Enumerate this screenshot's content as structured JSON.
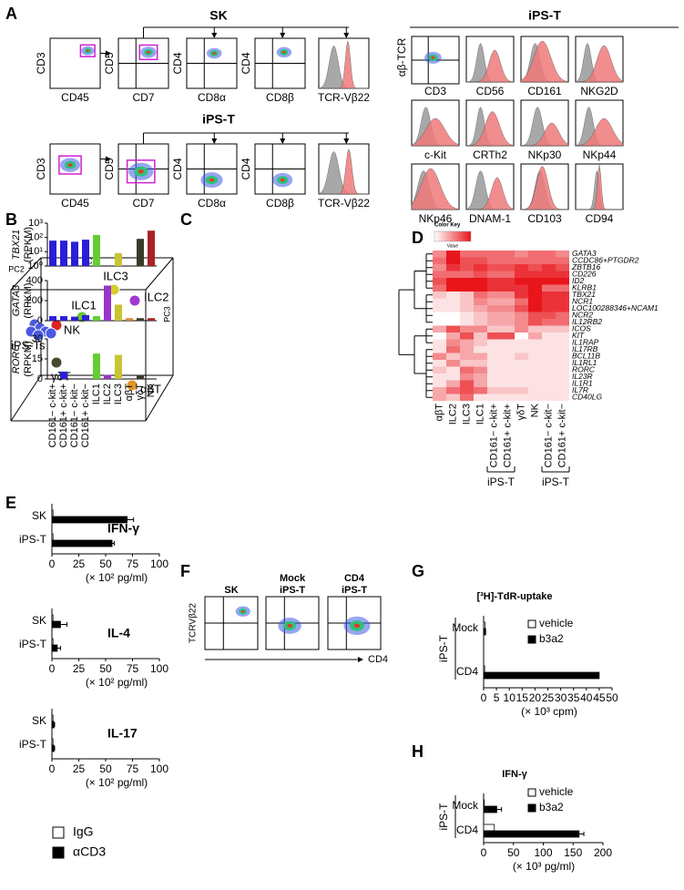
{
  "panel_labels": [
    "A",
    "B",
    "C",
    "D",
    "E",
    "F",
    "G",
    "H"
  ],
  "panel_a": {
    "sk_label": "SK",
    "ips_label": "iPS-T",
    "flow_plots": [
      {
        "y": "CD3",
        "x": "CD45"
      },
      {
        "y": "CD5",
        "x": "CD7"
      },
      {
        "y": "CD4",
        "x": "CD8α"
      },
      {
        "y": "CD4",
        "x": "CD8β"
      },
      {
        "x": "TCR-Vβ22"
      }
    ],
    "right_title": "iPS-T",
    "right_y": "αβ-TCR",
    "right_plots": [
      "CD3",
      "CD56",
      "CD161",
      "NKG2D",
      "c-Kit",
      "CRTh2",
      "NKp30",
      "NKp44",
      "NKp46",
      "DNAM-1",
      "CD103",
      "CD94"
    ]
  },
  "panel_b": {
    "axes": [
      "PC1",
      "PC2",
      "PC3"
    ],
    "points": [
      {
        "label": "ILC3",
        "color": "#d8cc2a"
      },
      {
        "label": "ILC2",
        "color": "#a03ad0"
      },
      {
        "label": "ILC1",
        "color": "#6ac43a"
      },
      {
        "label": "NK",
        "color": "#dd2222"
      },
      {
        "label": "iPS-Ts",
        "color": "#4a5ae0"
      },
      {
        "label": "γδT",
        "color": "#4a4a30"
      },
      {
        "label": "αβT",
        "color": "#e0962a"
      }
    ]
  },
  "panel_f": {
    "plots": [
      [
        "SK"
      ],
      [
        "Mock",
        "iPS-T"
      ],
      [
        "CD4",
        "iPS-T"
      ]
    ],
    "y_label": "TCRVβ22",
    "x_label": "CD4"
  },
  "chart_data": [
    {
      "type": "bar",
      "unit": "(RPKM)",
      "categories": [
        "CD161− c-kit+",
        "CD161+ c-kit+",
        "CD161− c-kit−",
        "CD161+ c-kit−",
        "ILC1",
        "ILC2",
        "ILC3",
        "αβT",
        "γδT",
        "NK"
      ],
      "colors": [
        "#2a1fd6",
        "#2a1fd6",
        "#2a1fd6",
        "#2a1fd6",
        "#66cc33",
        "#9933cc",
        "#c8c433",
        "#d08a33",
        "#3a3a28",
        "#aa2222"
      ],
      "panels": [
        {
          "ylabel": "TBX21",
          "log_scale": true,
          "ylim": [
            1,
            1000
          ],
          "yticks": [
            {
              "value": 1,
              "label": "10⁰"
            },
            {
              "value": 10,
              "label": "10¹"
            },
            {
              "value": 100,
              "label": "10²"
            },
            {
              "value": 1000,
              "label": "10³"
            }
          ],
          "values": [
            60,
            60,
            50,
            70,
            150,
            1,
            8,
            1,
            80,
            300
          ]
        },
        {
          "ylabel": "GATA3",
          "log_scale": false,
          "ylim": [
            0,
            400
          ],
          "yticks": [
            0,
            200,
            400
          ],
          "values": [
            45,
            45,
            40,
            55,
            45,
            350,
            160,
            25,
            25,
            25
          ]
        },
        {
          "ylabel": "RORC",
          "log_scale": false,
          "ylim": [
            0,
            30
          ],
          "yticks": [
            0,
            15,
            30
          ],
          "values": [
            0,
            5.5,
            0,
            0,
            19,
            3,
            18,
            0,
            3,
            0
          ]
        }
      ]
    },
    {
      "type": "heatmap",
      "color_key_title": "Color Key",
      "color_key_label": "Value",
      "columns": [
        "αβT",
        "ILC2",
        "ILC3",
        "ILC1",
        "CD161− c-kit+",
        "CD161+ c-kit+",
        "γδT",
        "NK",
        "CD161− c-kit−",
        "CD161+ c-kit−"
      ],
      "column_groups": [
        "iPS-T",
        "iPS-T"
      ],
      "rows": [
        "GATA3",
        "CCDC86+PTGDR2",
        "ZBTB16",
        "CD226",
        "ID2",
        "KLRB1",
        "TBX21",
        "NCR1",
        "LOC100288346+NCAM1",
        "NCR2",
        "IL12RB2",
        "ICOS",
        "KIT",
        "IL1RAP",
        "IL17RB",
        "BCL11B",
        "IL1RL1",
        "RORC",
        "IL23R",
        "IL1R1",
        "IL7R",
        "CD40LG"
      ],
      "values": [
        [
          4,
          8,
          5,
          5,
          5,
          5,
          4,
          5,
          5,
          4
        ],
        [
          5,
          8,
          6,
          6,
          5,
          5,
          5,
          5,
          5,
          5
        ],
        [
          4,
          7,
          6,
          7,
          6,
          6,
          7,
          6,
          7,
          6
        ],
        [
          5,
          5,
          5,
          6,
          5,
          5,
          7,
          7,
          7,
          7
        ],
        [
          6,
          8,
          8,
          8,
          7,
          7,
          8,
          8,
          8,
          8
        ],
        [
          5,
          8,
          8,
          8,
          7,
          7,
          7,
          8,
          5,
          5
        ],
        [
          2,
          1,
          2,
          5,
          4,
          4,
          7,
          8,
          7,
          7
        ],
        [
          1,
          1,
          2,
          4,
          3,
          3,
          5,
          8,
          7,
          7
        ],
        [
          1,
          1,
          2,
          3,
          4,
          4,
          6,
          8,
          7,
          7
        ],
        [
          0,
          0,
          1,
          2,
          3,
          3,
          4,
          6,
          6,
          5
        ],
        [
          0,
          0,
          1,
          2,
          3,
          3,
          4,
          6,
          5,
          5
        ],
        [
          3,
          6,
          4,
          4,
          2,
          2,
          4,
          2,
          2,
          2
        ],
        [
          0,
          3,
          6,
          2,
          6,
          6,
          0,
          3,
          1,
          1
        ],
        [
          1,
          4,
          3,
          2,
          1,
          1,
          1,
          1,
          1,
          1
        ],
        [
          1,
          5,
          3,
          1,
          1,
          1,
          1,
          1,
          1,
          1
        ],
        [
          4,
          2,
          3,
          3,
          1,
          1,
          2,
          1,
          1,
          1
        ],
        [
          1,
          4,
          2,
          2,
          1,
          1,
          1,
          1,
          1,
          1
        ],
        [
          2,
          1,
          5,
          4,
          1,
          1,
          1,
          1,
          1,
          1
        ],
        [
          1,
          1,
          4,
          3,
          1,
          1,
          1,
          1,
          1,
          1
        ],
        [
          1,
          3,
          6,
          3,
          1,
          1,
          1,
          1,
          1,
          1
        ],
        [
          3,
          5,
          6,
          5,
          2,
          2,
          2,
          1,
          1,
          1
        ],
        [
          3,
          2,
          5,
          1,
          1,
          1,
          1,
          1,
          1,
          1
        ]
      ]
    },
    {
      "type": "hbar",
      "panel_titles": [
        "IFN-γ",
        "IL-4",
        "IL-17"
      ],
      "categories": [
        "SK",
        "iPS-T"
      ],
      "xlim": [
        0,
        100
      ],
      "xticks": [
        0,
        25,
        50,
        75,
        100
      ],
      "xlabel": "(× 10² pg/ml)",
      "series": [
        {
          "name": "IgG",
          "color": "#ffffff",
          "values": [
            [
              1,
              1
            ],
            [
              1,
              1
            ],
            [
              1,
              1
            ]
          ]
        },
        {
          "name": "αCD3",
          "color": "#000000",
          "values": [
            [
              70,
              56
            ],
            [
              8,
              5
            ],
            [
              2,
              2
            ]
          ],
          "errors": [
            [
              6,
              2
            ],
            [
              6,
              3
            ],
            [
              0.5,
              0.5
            ]
          ]
        }
      ]
    },
    {
      "type": "hbar",
      "title": "[³H]-TdR-uptake",
      "group_label": "iPS-T",
      "categories": [
        "Mock",
        "CD4"
      ],
      "xlim": [
        0,
        50
      ],
      "xticks": [
        0,
        5,
        10,
        15,
        20,
        25,
        30,
        35,
        40,
        45,
        50
      ],
      "xlabel": "(× 10³ cpm)",
      "series": [
        {
          "name": "vehicle",
          "color": "#ffffff",
          "values": [
            0.5,
            0.4
          ]
        },
        {
          "name": "b3a2",
          "color": "#000000",
          "values": [
            0.8,
            45
          ]
        }
      ]
    },
    {
      "type": "hbar",
      "title": "IFN-γ",
      "group_label": "iPS-T",
      "categories": [
        "Mock",
        "CD4"
      ],
      "xlim": [
        0,
        200
      ],
      "xticks": [
        0,
        50,
        100,
        150,
        200
      ],
      "xlabel": "(× 10³ pg/ml)",
      "series": [
        {
          "name": "vehicle",
          "color": "#ffffff",
          "values": [
            1,
            18
          ]
        },
        {
          "name": "b3a2",
          "color": "#000000",
          "values": [
            22,
            160
          ],
          "errors": [
            8,
            8
          ]
        }
      ]
    }
  ]
}
